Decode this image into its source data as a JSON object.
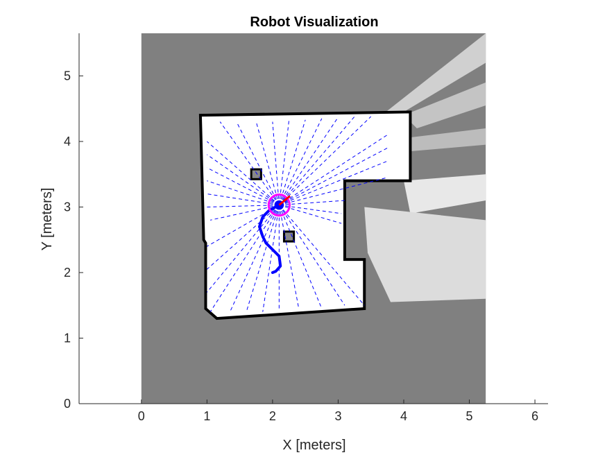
{
  "chart_data": {
    "type": "scatter",
    "title": "Robot Visualization",
    "xlabel": "X [meters]",
    "ylabel": "Y [meters]",
    "xlim": [
      -0.95,
      6.2
    ],
    "ylim": [
      0,
      5.65
    ],
    "xticks": [
      "0",
      "1",
      "2",
      "3",
      "4",
      "5",
      "6"
    ],
    "yticks": [
      "0",
      "1",
      "2",
      "3",
      "4",
      "5"
    ],
    "grid": false,
    "map": {
      "extent_x": [
        0,
        5.25
      ],
      "extent_y": [
        0,
        5.65
      ],
      "unknown_color": "#808080",
      "free_color": "#ffffff",
      "occupied_color": "#000000",
      "outer_wall": [
        [
          0.9,
          4.4
        ],
        [
          4.1,
          4.45
        ],
        [
          4.1,
          3.4
        ],
        [
          3.1,
          3.4
        ],
        [
          3.1,
          2.2
        ],
        [
          3.4,
          2.2
        ],
        [
          3.4,
          1.45
        ],
        [
          1.15,
          1.3
        ],
        [
          0.98,
          1.45
        ],
        [
          0.98,
          2.45
        ],
        [
          0.95,
          2.5
        ],
        [
          0.9,
          4.4
        ]
      ],
      "obstacles": [
        {
          "center": [
            1.75,
            3.5
          ],
          "size": 0.15
        },
        {
          "center": [
            2.25,
            2.55
          ],
          "size": 0.15
        }
      ]
    },
    "robot": {
      "position": [
        2.1,
        3.03
      ],
      "heading_deg": 40,
      "body_color": "#0000ff",
      "ring_color": "#ff00ff",
      "heading_color": "#ff0000"
    },
    "trajectory": {
      "color": "#0000ff",
      "points": [
        [
          2.1,
          3.03
        ],
        [
          1.95,
          2.95
        ],
        [
          1.85,
          2.85
        ],
        [
          1.8,
          2.7
        ],
        [
          1.85,
          2.55
        ],
        [
          1.9,
          2.45
        ],
        [
          2.0,
          2.35
        ],
        [
          2.1,
          2.25
        ],
        [
          2.12,
          2.1
        ],
        [
          2.05,
          2.02
        ],
        [
          2.0,
          2.0
        ]
      ]
    },
    "scan": {
      "color": "#0000ff",
      "endpoints": [
        [
          1.05,
          2.8
        ],
        [
          1.0,
          3.0
        ],
        [
          1.0,
          3.2
        ],
        [
          1.0,
          3.4
        ],
        [
          1.0,
          3.6
        ],
        [
          1.0,
          3.8
        ],
        [
          1.0,
          4.0
        ],
        [
          1.2,
          4.3
        ],
        [
          1.45,
          4.3
        ],
        [
          1.75,
          4.3
        ],
        [
          2.0,
          4.3
        ],
        [
          2.25,
          4.32
        ],
        [
          2.5,
          4.33
        ],
        [
          2.75,
          4.35
        ],
        [
          3.0,
          4.37
        ],
        [
          3.25,
          4.38
        ],
        [
          3.5,
          4.38
        ],
        [
          3.75,
          4.1
        ],
        [
          3.75,
          3.9
        ],
        [
          3.75,
          3.7
        ],
        [
          3.75,
          3.45
        ],
        [
          3.1,
          3.1
        ],
        [
          3.05,
          2.9
        ],
        [
          3.05,
          2.75
        ],
        [
          3.4,
          1.5
        ],
        [
          3.1,
          1.5
        ],
        [
          2.75,
          1.45
        ],
        [
          2.4,
          1.45
        ],
        [
          2.1,
          1.45
        ],
        [
          1.85,
          1.4
        ],
        [
          1.6,
          1.4
        ],
        [
          1.35,
          1.4
        ],
        [
          1.05,
          1.4
        ],
        [
          1.0,
          1.7
        ],
        [
          1.0,
          2.05
        ],
        [
          1.0,
          2.4
        ]
      ]
    }
  }
}
